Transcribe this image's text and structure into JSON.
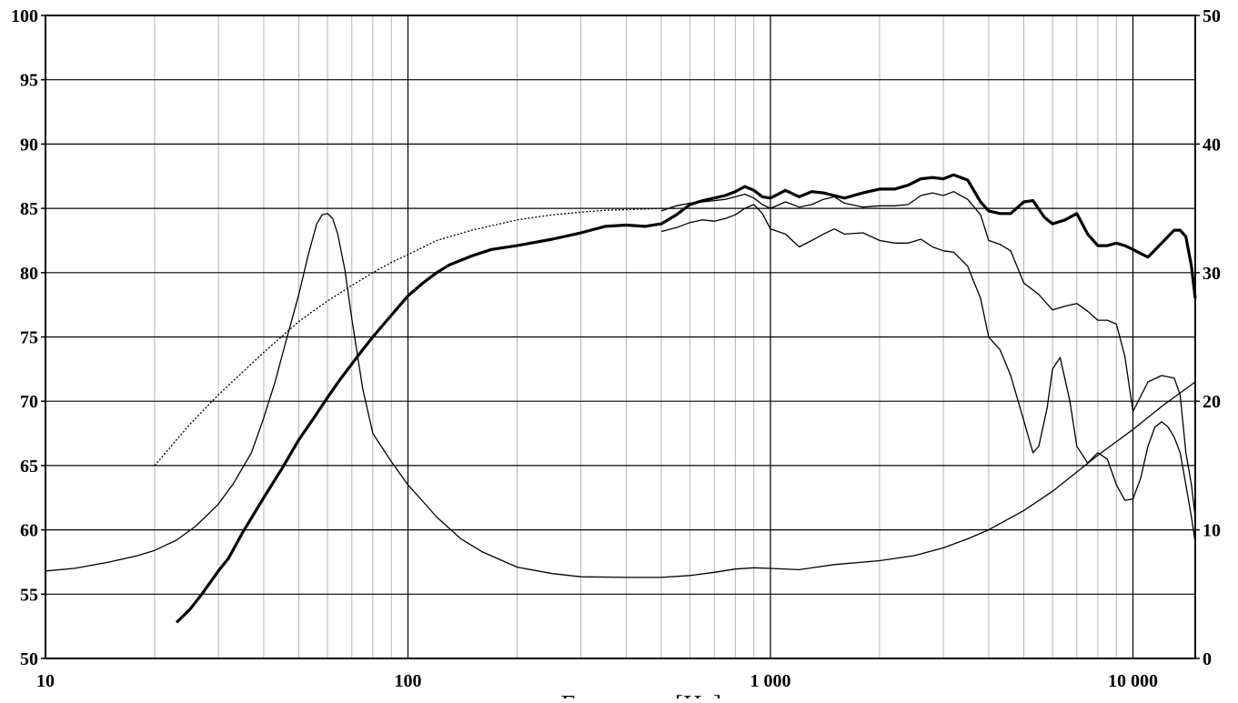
{
  "chart_data": {
    "type": "line",
    "title": "",
    "xlabel": "Frequency [Hz]",
    "ylabel": "",
    "x_scale": "log",
    "xlim": [
      10,
      15000
    ],
    "ylim_left": [
      50,
      100
    ],
    "ylim_right": [
      0,
      50
    ],
    "grid": true,
    "legend": "none",
    "x_tick_values": [
      10,
      100,
      1000,
      10000
    ],
    "x_tick_labels": [
      "10",
      "100",
      "1 000",
      "10 000"
    ],
    "y_left_ticks": [
      "50",
      "55",
      "60",
      "65",
      "70",
      "75",
      "80",
      "85",
      "90",
      "95",
      "100"
    ],
    "y_right_ticks": [
      "0",
      "10",
      "20",
      "30",
      "40",
      "50"
    ],
    "series": [
      {
        "axis": "left",
        "style": "thick",
        "x": [
          23,
          25,
          27,
          30,
          32,
          35,
          40,
          45,
          50,
          55,
          60,
          65,
          70,
          75,
          80,
          90,
          100,
          110,
          120,
          130,
          150,
          170,
          200,
          250,
          300,
          350,
          400,
          450,
          500,
          550,
          600,
          650,
          700,
          750,
          800,
          850,
          900,
          950,
          1000,
          1100,
          1200,
          1300,
          1400,
          1500,
          1600,
          1800,
          2000,
          2200,
          2400,
          2600,
          2800,
          3000,
          3200,
          3500,
          3800,
          4000,
          4300,
          4600,
          5000,
          5300,
          5700,
          6000,
          6500,
          7000,
          7500,
          8000,
          8500,
          9000,
          9500,
          10000,
          11000,
          12000,
          13000,
          13500,
          14000,
          14500,
          15000
        ],
        "y": [
          52.8,
          53.8,
          55.0,
          56.8,
          57.8,
          59.8,
          62.5,
          64.8,
          67.0,
          68.7,
          70.3,
          71.7,
          72.9,
          74.0,
          75.0,
          76.7,
          78.2,
          79.2,
          80.0,
          80.6,
          81.3,
          81.8,
          82.1,
          82.6,
          83.1,
          83.6,
          83.7,
          83.6,
          83.8,
          84.5,
          85.3,
          85.6,
          85.8,
          86.0,
          86.3,
          86.7,
          86.4,
          85.9,
          85.8,
          86.4,
          85.9,
          86.3,
          86.2,
          86.0,
          85.8,
          86.2,
          86.5,
          86.5,
          86.8,
          87.3,
          87.4,
          87.3,
          87.6,
          87.2,
          85.5,
          84.8,
          84.6,
          84.6,
          85.5,
          85.6,
          84.3,
          83.8,
          84.1,
          84.6,
          83.0,
          82.1,
          82.1,
          82.3,
          82.1,
          81.8,
          81.2,
          82.3,
          83.3,
          83.3,
          82.8,
          80.5,
          78.0
        ]
      },
      {
        "axis": "left",
        "style": "thin",
        "x": [
          500,
          550,
          600,
          650,
          700,
          750,
          800,
          850,
          900,
          950,
          1000,
          1100,
          1200,
          1300,
          1400,
          1500,
          1600,
          1800,
          2000,
          2200,
          2400,
          2600,
          2800,
          3000,
          3200,
          3500,
          3800,
          4000,
          4300,
          4600,
          5000,
          5500,
          6000,
          6500,
          7000,
          7500,
          8000,
          8500,
          9000,
          9500,
          10000,
          11000,
          12000,
          13000,
          13500,
          14000,
          14500,
          15000
        ],
        "y": [
          84.8,
          85.2,
          85.4,
          85.5,
          85.6,
          85.7,
          85.9,
          86.1,
          85.8,
          85.3,
          85.0,
          85.5,
          85.1,
          85.3,
          85.7,
          85.9,
          85.4,
          85.1,
          85.2,
          85.2,
          85.3,
          86.0,
          86.2,
          86.0,
          86.3,
          85.7,
          84.5,
          82.5,
          82.2,
          81.7,
          79.2,
          78.3,
          77.1,
          77.4,
          77.6,
          77.0,
          76.3,
          76.3,
          76.0,
          73.5,
          69.2,
          71.5,
          72.0,
          71.8,
          70.5,
          66.0,
          63.5,
          61.0
        ]
      },
      {
        "axis": "left",
        "style": "thin",
        "x": [
          500,
          550,
          600,
          650,
          700,
          750,
          800,
          850,
          900,
          950,
          1000,
          1100,
          1200,
          1300,
          1400,
          1500,
          1600,
          1800,
          2000,
          2200,
          2400,
          2600,
          2800,
          3000,
          3200,
          3500,
          3800,
          4000,
          4300,
          4600,
          5000,
          5300,
          5500,
          5800,
          6000,
          6300,
          6700,
          7000,
          7500,
          8000,
          8500,
          9000,
          9500,
          10000,
          10500,
          11000,
          11500,
          12000,
          12500,
          13000,
          13500,
          14000,
          14500,
          15000
        ],
        "y": [
          83.2,
          83.5,
          83.9,
          84.1,
          84.0,
          84.2,
          84.5,
          85.0,
          85.3,
          84.6,
          83.4,
          83.0,
          82.0,
          82.5,
          83.0,
          83.4,
          83.0,
          83.1,
          82.5,
          82.3,
          82.3,
          82.6,
          82.0,
          81.7,
          81.6,
          80.5,
          78.0,
          75.0,
          74.0,
          72.0,
          68.5,
          66.0,
          66.5,
          69.5,
          72.5,
          73.4,
          70.0,
          66.5,
          65.2,
          66.0,
          65.5,
          63.5,
          62.3,
          62.4,
          64.0,
          66.5,
          68.0,
          68.4,
          68.0,
          67.2,
          66.0,
          63.5,
          61.0,
          59.0
        ]
      },
      {
        "axis": "left",
        "style": "dotted",
        "x": [
          20,
          25,
          30,
          40,
          50,
          60,
          70,
          80,
          90,
          100,
          120,
          150,
          200,
          250,
          300,
          350,
          400,
          450,
          500,
          550
        ],
        "y": [
          65.0,
          68.2,
          70.5,
          73.8,
          76.2,
          77.8,
          79.0,
          80.0,
          80.8,
          81.4,
          82.5,
          83.3,
          84.1,
          84.5,
          84.7,
          84.85,
          84.9,
          84.95,
          85.0,
          85.0
        ]
      },
      {
        "axis": "right",
        "style": "thin",
        "x": [
          10,
          12,
          15,
          18,
          20,
          23,
          26,
          30,
          33,
          37,
          40,
          43,
          46,
          50,
          53,
          56,
          58,
          60,
          62,
          64,
          67,
          70,
          75,
          80,
          90,
          100,
          110,
          120,
          140,
          160,
          200,
          250,
          300,
          400,
          500,
          600,
          700,
          800,
          900,
          1000,
          1200,
          1500,
          2000,
          2500,
          3000,
          3500,
          4000,
          5000,
          6000,
          7000,
          8000,
          10000,
          12000,
          15000
        ],
        "y": [
          6.8,
          7.0,
          7.5,
          8.0,
          8.4,
          9.2,
          10.3,
          12.0,
          13.6,
          16.0,
          18.7,
          21.5,
          24.6,
          28.3,
          31.3,
          33.8,
          34.5,
          34.6,
          34.2,
          33.0,
          30.2,
          26.4,
          21.0,
          17.5,
          15.3,
          13.5,
          12.2,
          11.0,
          9.3,
          8.3,
          7.1,
          6.6,
          6.35,
          6.3,
          6.3,
          6.45,
          6.7,
          6.95,
          7.05,
          7.0,
          6.9,
          7.3,
          7.6,
          8.0,
          8.6,
          9.3,
          10.0,
          11.5,
          13.0,
          14.5,
          15.8,
          17.8,
          19.6,
          21.5
        ]
      }
    ]
  }
}
